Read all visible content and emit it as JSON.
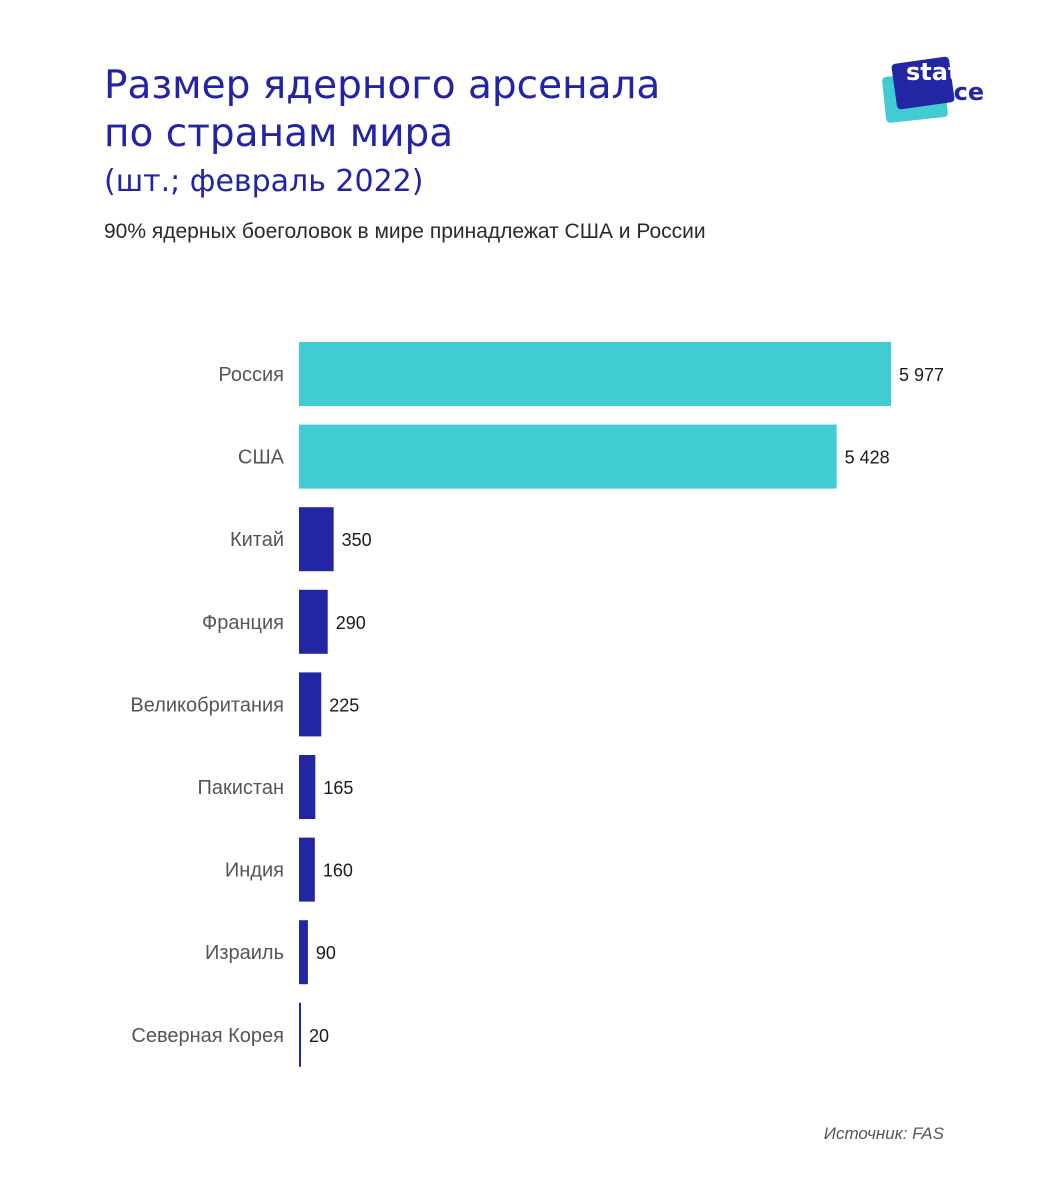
{
  "title": {
    "line1": "Размер ядерного арсенала",
    "line2": "по странам мира",
    "line3": "(шт.; февраль 2022)"
  },
  "subtitle": "90% ядерных боеголовок в мире принадлежат США и России",
  "logo": {
    "word1": "stat",
    "word2": "space"
  },
  "source": "Источник: FAS",
  "colors": {
    "highlight": "#41cbd2",
    "base": "#2326a3",
    "title": "#2323a8"
  },
  "chart_data": {
    "type": "bar",
    "orientation": "horizontal",
    "categories": [
      "Россия",
      "США",
      "Китай",
      "Франция",
      "Великобритания",
      "Пакистан",
      "Индия",
      "Израиль",
      "Северная Корея"
    ],
    "values": [
      5977,
      5428,
      350,
      290,
      225,
      165,
      160,
      90,
      20
    ],
    "value_labels": [
      "5 977",
      "5 428",
      "350",
      "290",
      "225",
      "165",
      "160",
      "90",
      "20"
    ],
    "highlighted": [
      true,
      true,
      false,
      false,
      false,
      false,
      false,
      false,
      false
    ],
    "xlim": [
      0,
      5977
    ],
    "grid": false,
    "legend": "none"
  }
}
